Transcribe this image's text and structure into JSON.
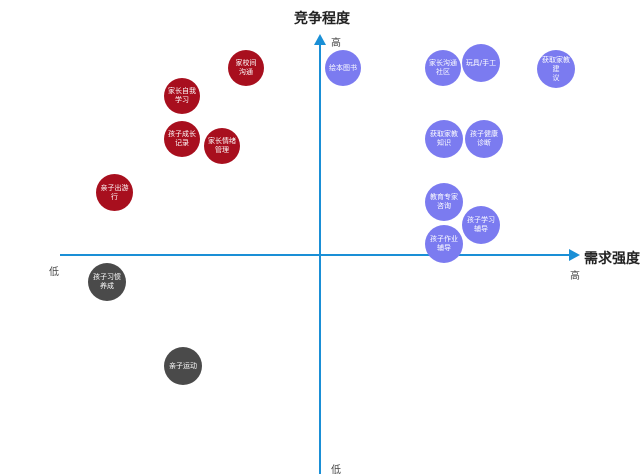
{
  "axes": {
    "y_title": "竞争程度",
    "y_high": "高",
    "y_low": "低",
    "x_title": "需求强度",
    "x_high": "高",
    "x_low": "低"
  },
  "colors": {
    "axis": "#1a8fd6",
    "red_quadrant": "#a80f1e",
    "blue_quadrant": "#7b7bf0",
    "gray_quadrant": "#4a4a4a"
  },
  "items": [
    {
      "label": "家校间\n沟通",
      "color": "#a80f1e"
    },
    {
      "label": "家长自我\n学习",
      "color": "#a80f1e"
    },
    {
      "label": "孩子成长\n记录",
      "color": "#a80f1e"
    },
    {
      "label": "家长情绪\n管理",
      "color": "#a80f1e"
    },
    {
      "label": "亲子出游行",
      "color": "#a80f1e"
    },
    {
      "label": "绘本图书",
      "color": "#7b7bf0"
    },
    {
      "label": "家长沟通\n社区",
      "color": "#7b7bf0"
    },
    {
      "label": "玩具/手工",
      "color": "#7b7bf0"
    },
    {
      "label": "获取家教建\n议",
      "color": "#7b7bf0"
    },
    {
      "label": "获取家教\n知识",
      "color": "#7b7bf0"
    },
    {
      "label": "孩子健康\n诊断",
      "color": "#7b7bf0"
    },
    {
      "label": "教育专家\n咨询",
      "color": "#7b7bf0"
    },
    {
      "label": "孩子学习\n辅导",
      "color": "#7b7bf0"
    },
    {
      "label": "孩子作业\n辅导",
      "color": "#7b7bf0"
    },
    {
      "label": "孩子习惯\n养成",
      "color": "#4a4a4a"
    },
    {
      "label": "亲子运动",
      "color": "#4a4a4a"
    }
  ]
}
